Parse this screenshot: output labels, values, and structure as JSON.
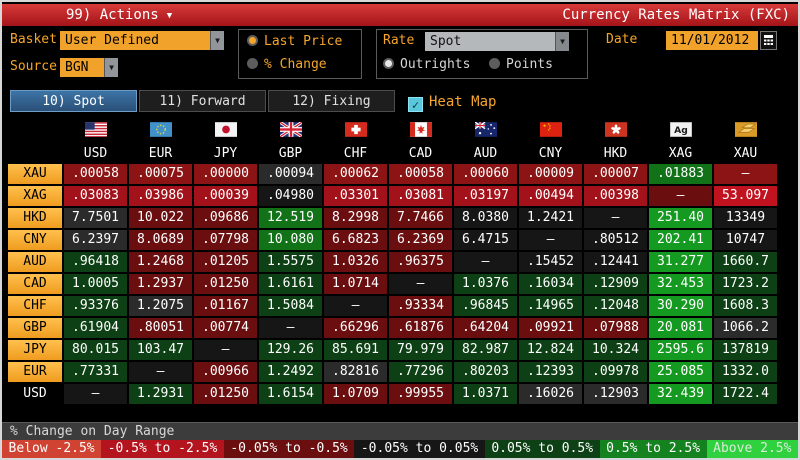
{
  "title_bar": {
    "menu_label": "99) Actions",
    "title": "Currency Rates Matrix (FXC)"
  },
  "controls": {
    "basket_label": "Basket",
    "basket_value": "User Defined",
    "source_label": "Source",
    "source_value": "BGN",
    "price_mode_options": [
      {
        "label": "Last Price",
        "selected": true
      },
      {
        "label": "% Change",
        "selected": false
      }
    ],
    "rate_label": "Rate",
    "rate_value": "Spot",
    "rate_mode_options": [
      {
        "label": "Outrights",
        "selected": true
      },
      {
        "label": "Points",
        "selected": false
      }
    ],
    "date_label": "Date",
    "date_value": "11/01/2012",
    "calendar_icon": "calculator-grid"
  },
  "tabs": [
    {
      "label": "10) Spot",
      "active": true
    },
    {
      "label": "11) Forward",
      "active": false
    },
    {
      "label": "12) Fixing",
      "active": false
    }
  ],
  "heatmap": {
    "label": "Heat Map",
    "checked": true
  },
  "palette": {
    "redD": "#6a0e10",
    "redM": "#8c1414",
    "redB": "#a3121b",
    "redX": "#c1121f",
    "k": "#161616",
    "kg": "#2b2b2b",
    "grnD": "#0d4014",
    "grnM": "#117218",
    "grnB": "#149a20",
    "amber_accent": "#f5a52c",
    "titlebar_red": "#c22128",
    "tab_blue": "#2f5d8a",
    "heatmap_check_cyan": "#5ac8dc"
  },
  "matrix": {
    "columns": [
      "USD",
      "EUR",
      "JPY",
      "GBP",
      "CHF",
      "CAD",
      "AUD",
      "CNY",
      "HKD",
      "XAG",
      "XAU"
    ],
    "rows": [
      {
        "code": "XAU",
        "cells": [
          {
            "v": ".00058",
            "c": "redM"
          },
          {
            "v": ".00075",
            "c": "redM"
          },
          {
            "v": ".00000",
            "c": "redM"
          },
          {
            "v": ".00094",
            "c": "kg"
          },
          {
            "v": ".00062",
            "c": "redM"
          },
          {
            "v": ".00058",
            "c": "redM"
          },
          {
            "v": ".00060",
            "c": "redM"
          },
          {
            "v": ".00009",
            "c": "redM"
          },
          {
            "v": ".00007",
            "c": "redM"
          },
          {
            "v": ".01883",
            "c": "grnM"
          },
          {
            "v": "–",
            "c": "redM"
          }
        ]
      },
      {
        "code": "XAG",
        "cells": [
          {
            "v": ".03083",
            "c": "redB"
          },
          {
            "v": ".03986",
            "c": "redB"
          },
          {
            "v": ".00039",
            "c": "redB"
          },
          {
            "v": ".04980",
            "c": "k"
          },
          {
            "v": ".03301",
            "c": "redB"
          },
          {
            "v": ".03081",
            "c": "redB"
          },
          {
            "v": ".03197",
            "c": "redB"
          },
          {
            "v": ".00494",
            "c": "redB"
          },
          {
            "v": ".00398",
            "c": "redB"
          },
          {
            "v": "–",
            "c": "redD"
          },
          {
            "v": "53.097",
            "c": "redX"
          }
        ]
      },
      {
        "code": "HKD",
        "cells": [
          {
            "v": "7.7501",
            "c": "kg"
          },
          {
            "v": "10.022",
            "c": "redD"
          },
          {
            "v": ".09686",
            "c": "redD"
          },
          {
            "v": "12.519",
            "c": "grnM"
          },
          {
            "v": "8.2998",
            "c": "redD"
          },
          {
            "v": "7.7466",
            "c": "redD"
          },
          {
            "v": "8.0380",
            "c": "k"
          },
          {
            "v": "1.2421",
            "c": "k"
          },
          {
            "v": "–",
            "c": "k"
          },
          {
            "v": "251.40",
            "c": "grnB"
          },
          {
            "v": "13349",
            "c": "k"
          }
        ]
      },
      {
        "code": "CNY",
        "cells": [
          {
            "v": "6.2397",
            "c": "kg"
          },
          {
            "v": "8.0689",
            "c": "redD"
          },
          {
            "v": ".07798",
            "c": "redD"
          },
          {
            "v": "10.080",
            "c": "grnM"
          },
          {
            "v": "6.6823",
            "c": "redD"
          },
          {
            "v": "6.2369",
            "c": "redD"
          },
          {
            "v": "6.4715",
            "c": "k"
          },
          {
            "v": "–",
            "c": "k"
          },
          {
            "v": ".80512",
            "c": "k"
          },
          {
            "v": "202.41",
            "c": "grnB"
          },
          {
            "v": "10747",
            "c": "k"
          }
        ]
      },
      {
        "code": "AUD",
        "cells": [
          {
            "v": ".96418",
            "c": "grnD"
          },
          {
            "v": "1.2468",
            "c": "redD"
          },
          {
            "v": ".01205",
            "c": "redD"
          },
          {
            "v": "1.5575",
            "c": "grnD"
          },
          {
            "v": "1.0326",
            "c": "redD"
          },
          {
            "v": ".96375",
            "c": "redD"
          },
          {
            "v": "–",
            "c": "k"
          },
          {
            "v": ".15452",
            "c": "k"
          },
          {
            "v": ".12441",
            "c": "k"
          },
          {
            "v": "31.277",
            "c": "grnB"
          },
          {
            "v": "1660.7",
            "c": "grnD"
          }
        ]
      },
      {
        "code": "CAD",
        "cells": [
          {
            "v": "1.0005",
            "c": "grnD"
          },
          {
            "v": "1.2937",
            "c": "redD"
          },
          {
            "v": ".01250",
            "c": "redD"
          },
          {
            "v": "1.6161",
            "c": "grnD"
          },
          {
            "v": "1.0714",
            "c": "redD"
          },
          {
            "v": "–",
            "c": "k"
          },
          {
            "v": "1.0376",
            "c": "grnD"
          },
          {
            "v": ".16034",
            "c": "grnD"
          },
          {
            "v": ".12909",
            "c": "grnD"
          },
          {
            "v": "32.453",
            "c": "grnB"
          },
          {
            "v": "1723.2",
            "c": "grnD"
          }
        ]
      },
      {
        "code": "CHF",
        "cells": [
          {
            "v": ".93376",
            "c": "grnD"
          },
          {
            "v": "1.2075",
            "c": "kg"
          },
          {
            "v": ".01167",
            "c": "redD"
          },
          {
            "v": "1.5084",
            "c": "grnD"
          },
          {
            "v": "–",
            "c": "k"
          },
          {
            "v": ".93334",
            "c": "redD"
          },
          {
            "v": ".96845",
            "c": "grnD"
          },
          {
            "v": ".14965",
            "c": "grnD"
          },
          {
            "v": ".12048",
            "c": "grnD"
          },
          {
            "v": "30.290",
            "c": "grnB"
          },
          {
            "v": "1608.3",
            "c": "grnD"
          }
        ]
      },
      {
        "code": "GBP",
        "cells": [
          {
            "v": ".61904",
            "c": "grnD"
          },
          {
            "v": ".80051",
            "c": "redD"
          },
          {
            "v": ".00774",
            "c": "redD"
          },
          {
            "v": "–",
            "c": "k"
          },
          {
            "v": ".66296",
            "c": "redD"
          },
          {
            "v": ".61876",
            "c": "redD"
          },
          {
            "v": ".64204",
            "c": "redD"
          },
          {
            "v": ".09921",
            "c": "redD"
          },
          {
            "v": ".07988",
            "c": "redD"
          },
          {
            "v": "20.081",
            "c": "grnB"
          },
          {
            "v": "1066.2",
            "c": "kg"
          }
        ]
      },
      {
        "code": "JPY",
        "cells": [
          {
            "v": "80.015",
            "c": "grnD"
          },
          {
            "v": "103.47",
            "c": "grnD"
          },
          {
            "v": "–",
            "c": "k"
          },
          {
            "v": "129.26",
            "c": "grnD"
          },
          {
            "v": "85.691",
            "c": "grnD"
          },
          {
            "v": "79.979",
            "c": "grnD"
          },
          {
            "v": "82.987",
            "c": "grnD"
          },
          {
            "v": "12.824",
            "c": "grnD"
          },
          {
            "v": "10.324",
            "c": "grnD"
          },
          {
            "v": "2595.6",
            "c": "grnB"
          },
          {
            "v": "137819",
            "c": "grnD"
          }
        ]
      },
      {
        "code": "EUR",
        "cells": [
          {
            "v": ".77331",
            "c": "grnD"
          },
          {
            "v": "–",
            "c": "k"
          },
          {
            "v": ".00966",
            "c": "redD"
          },
          {
            "v": "1.2492",
            "c": "grnD"
          },
          {
            "v": ".82816",
            "c": "kg"
          },
          {
            "v": ".77296",
            "c": "grnD"
          },
          {
            "v": ".80203",
            "c": "grnD"
          },
          {
            "v": ".12393",
            "c": "grnD"
          },
          {
            "v": ".09978",
            "c": "grnD"
          },
          {
            "v": "25.085",
            "c": "grnB"
          },
          {
            "v": "1332.0",
            "c": "grnD"
          }
        ]
      },
      {
        "code": "USD",
        "cells": [
          {
            "v": "–",
            "c": "k"
          },
          {
            "v": "1.2931",
            "c": "grnD"
          },
          {
            "v": ".01250",
            "c": "redD"
          },
          {
            "v": "1.6154",
            "c": "grnD"
          },
          {
            "v": "1.0709",
            "c": "redD"
          },
          {
            "v": ".99955",
            "c": "redD"
          },
          {
            "v": "1.0371",
            "c": "grnD"
          },
          {
            "v": ".16026",
            "c": "kg"
          },
          {
            "v": ".12903",
            "c": "kg"
          },
          {
            "v": "32.439",
            "c": "grnB"
          },
          {
            "v": "1722.4",
            "c": "grnD"
          }
        ]
      }
    ]
  },
  "legend": {
    "title": "% Change on Day Range",
    "items": [
      {
        "label": "Below -2.5%",
        "bg": "#d04231",
        "fg": "#ffffff"
      },
      {
        "label": "-0.5% to -2.5%",
        "bg": "#b3141d",
        "fg": "#ffffff"
      },
      {
        "label": "-0.05% to -0.5%",
        "bg": "#6a0e10",
        "fg": "#ffffff"
      },
      {
        "label": "-0.05% to 0.05%",
        "bg": "#161616",
        "fg": "#ffffff"
      },
      {
        "label": "0.05% to 0.5%",
        "bg": "#0d4014",
        "fg": "#ffffff"
      },
      {
        "label": "0.5% to 2.5%",
        "bg": "#158220",
        "fg": "#ffffff"
      },
      {
        "label": "Above 2.5%",
        "bg": "#2fd13e",
        "fg": "#d9ecd9"
      }
    ]
  }
}
